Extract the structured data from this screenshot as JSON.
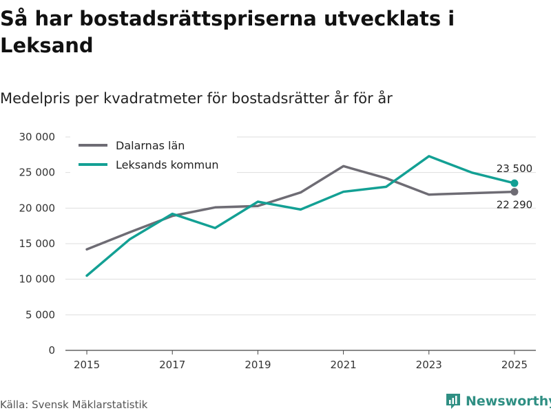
{
  "title": "Så har bostadsrättspriserna utvecklats i Leksand",
  "subtitle": "Medelpris per kvadratmeter för bostadsrätter år för år",
  "source": "Källa: Svensk Mäklarstatistik",
  "brand": "Newsworthy",
  "colors": {
    "dalarna": "#6e6c74",
    "leksand": "#13a094",
    "grid": "#dddddd",
    "brand": "#2f8f83"
  },
  "chart_data": {
    "type": "line",
    "x": [
      2015,
      2016,
      2017,
      2018,
      2019,
      2020,
      2021,
      2022,
      2023,
      2024,
      2025
    ],
    "xticks": [
      "2015",
      "2017",
      "2019",
      "2021",
      "2023",
      "2025"
    ],
    "xtick_values": [
      2015,
      2017,
      2019,
      2021,
      2023,
      2025
    ],
    "yticks": [
      "0",
      "5 000",
      "10 000",
      "15 000",
      "20 000",
      "25 000",
      "30 000"
    ],
    "ytick_values": [
      0,
      5000,
      10000,
      15000,
      20000,
      25000,
      30000
    ],
    "ylim": [
      0,
      30000
    ],
    "xlim": [
      2014.5,
      2025.5
    ],
    "series": [
      {
        "name": "Dalarnas län",
        "color": "#6e6c74",
        "values": [
          14200,
          16600,
          18900,
          20100,
          20300,
          22200,
          25900,
          24200,
          21900,
          22100,
          22290
        ],
        "end_label": "22 290"
      },
      {
        "name": "Leksands kommun",
        "color": "#13a094",
        "values": [
          10500,
          15600,
          19200,
          17200,
          20900,
          19800,
          22300,
          23000,
          27300,
          25000,
          23500
        ],
        "end_label": "23 500"
      }
    ]
  }
}
